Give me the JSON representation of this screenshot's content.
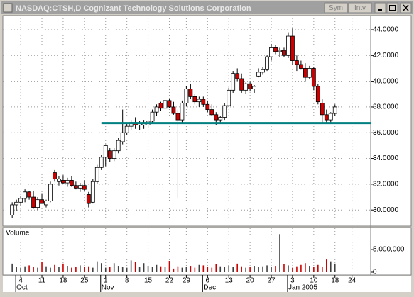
{
  "window": {
    "title": "NASDAQ:CTSH,D Cognizant Technology Solutions Corporation",
    "buttons": [
      "Sym",
      "Intv"
    ]
  },
  "chart_data": {
    "type": "candlestick",
    "x": [
      -2,
      -1,
      0,
      1,
      2,
      3,
      4,
      5,
      6,
      7,
      8,
      9,
      10,
      11,
      12,
      13,
      14,
      15,
      16,
      17,
      18,
      19,
      20,
      21,
      22,
      23,
      24,
      25,
      26,
      27,
      28,
      29,
      30,
      31,
      32,
      33,
      34,
      35,
      36,
      37,
      38,
      39,
      40,
      41,
      42,
      43,
      44,
      45,
      46,
      47,
      48,
      49,
      50,
      51,
      52,
      53,
      54,
      55,
      56,
      57,
      58,
      59,
      60,
      61,
      62,
      63,
      64,
      65,
      66,
      67,
      68,
      69,
      70,
      71,
      72,
      73,
      74
    ],
    "open": [
      29.6,
      30.4,
      30.6,
      30.9,
      31.4,
      31.0,
      30.2,
      30.8,
      30.4,
      30.7,
      32.9,
      32.2,
      32.3,
      32.1,
      32.3,
      31.9,
      31.7,
      31.9,
      31.2,
      30.6,
      32.2,
      33.3,
      34.1,
      34.6,
      34.0,
      34.6,
      35.3,
      36.0,
      36.5,
      36.8,
      36.6,
      36.6,
      36.6,
      36.9,
      37.6,
      38.3,
      37.9,
      38.5,
      38.0,
      37.5,
      37.0,
      38.3,
      39.4,
      38.8,
      38.4,
      38.6,
      38.2,
      37.8,
      37.4,
      37.0,
      37.2,
      38.1,
      39.3,
      40.6,
      40.2,
      39.3,
      39.8,
      39.4,
      40.4,
      40.7,
      40.9,
      41.9,
      42.6,
      42.3,
      42.4,
      42.0,
      43.5,
      41.6,
      41.3,
      41.0,
      40.3,
      41.0,
      39.6,
      38.3,
      37.4,
      37.0,
      37.5
    ],
    "high": [
      30.6,
      30.8,
      31.1,
      31.6,
      31.5,
      31.5,
      31.0,
      31.3,
      30.8,
      32.2,
      33.1,
      32.6,
      32.7,
      32.5,
      32.6,
      32.2,
      32.1,
      32.3,
      31.4,
      32.4,
      33.5,
      34.3,
      35.1,
      34.8,
      34.8,
      35.6,
      37.8,
      36.8,
      37.0,
      37.2,
      36.9,
      37.0,
      37.0,
      37.8,
      38.2,
      38.4,
      38.8,
      38.6,
      38.4,
      37.8,
      38.5,
      39.6,
      39.8,
      39.0,
      38.8,
      38.8,
      38.5,
      38.2,
      37.6,
      37.3,
      38.3,
      39.5,
      40.8,
      41.0,
      40.6,
      39.9,
      40.0,
      39.7,
      41.0,
      41.1,
      42.0,
      42.9,
      42.8,
      42.6,
      42.6,
      43.8,
      44.1,
      42.0,
      41.6,
      41.4,
      41.2,
      41.1,
      39.8,
      38.6,
      37.8,
      37.6,
      38.2
    ],
    "low": [
      29.4,
      29.9,
      30.3,
      30.6,
      30.8,
      30.1,
      30.0,
      30.5,
      30.2,
      30.6,
      32.2,
      31.9,
      32.0,
      31.8,
      31.8,
      31.6,
      31.4,
      31.5,
      30.2,
      30.5,
      32.0,
      33.1,
      33.4,
      33.7,
      33.8,
      34.4,
      35.1,
      35.8,
      36.2,
      36.3,
      36.2,
      36.3,
      36.4,
      36.8,
      37.3,
      37.7,
      37.8,
      37.9,
      37.4,
      30.9,
      36.8,
      38.1,
      38.6,
      38.2,
      38.0,
      38.0,
      37.6,
      37.3,
      36.6,
      36.7,
      37.0,
      38.0,
      39.1,
      40.0,
      39.1,
      39.0,
      39.2,
      39.1,
      40.3,
      40.5,
      40.8,
      41.6,
      42.1,
      41.9,
      41.9,
      41.8,
      41.3,
      40.8,
      40.9,
      40.0,
      40.2,
      39.3,
      38.2,
      36.7,
      36.8,
      36.8,
      37.3
    ],
    "close": [
      30.4,
      30.6,
      30.9,
      31.4,
      31.0,
      30.2,
      30.8,
      30.5,
      30.7,
      32.0,
      32.4,
      32.4,
      32.1,
      32.3,
      31.9,
      31.7,
      31.9,
      31.6,
      30.5,
      32.2,
      33.3,
      34.1,
      35.0,
      34.0,
      34.6,
      35.4,
      36.0,
      36.5,
      36.8,
      36.6,
      36.7,
      36.8,
      36.9,
      37.6,
      38.0,
      37.9,
      38.5,
      38.0,
      37.5,
      37.0,
      38.3,
      39.4,
      38.8,
      38.4,
      38.6,
      38.2,
      37.8,
      37.4,
      37.0,
      37.2,
      38.1,
      39.3,
      40.6,
      40.2,
      39.3,
      39.8,
      39.4,
      39.6,
      40.7,
      40.9,
      41.9,
      42.6,
      42.3,
      42.4,
      42.0,
      43.5,
      41.6,
      41.3,
      41.0,
      40.3,
      41.0,
      39.6,
      38.4,
      37.4,
      37.0,
      37.5,
      38.0
    ],
    "xlim": [
      -4.2,
      82.4
    ],
    "ylim": [
      28.8,
      45.1
    ],
    "yticks": [
      {
        "value": 30,
        "label": "30.0000"
      },
      {
        "value": 32,
        "label": "32.0000"
      },
      {
        "value": 34,
        "label": "34.0000"
      },
      {
        "value": 36,
        "label": "36.0000"
      },
      {
        "value": 38,
        "label": "38.0000"
      },
      {
        "value": 40,
        "label": "40.0000"
      },
      {
        "value": 42,
        "label": "42.0000"
      },
      {
        "value": 44,
        "label": "44.0000"
      }
    ],
    "xticks": [
      {
        "value": 0,
        "label": "4"
      },
      {
        "value": 5,
        "label": "11"
      },
      {
        "value": 10,
        "label": "18"
      },
      {
        "value": 15,
        "label": "25"
      },
      {
        "value": 20,
        "label": "1"
      },
      {
        "value": 25,
        "label": "8"
      },
      {
        "value": 30,
        "label": "15"
      },
      {
        "value": 35,
        "label": "22"
      },
      {
        "value": 39,
        "label": "29"
      },
      {
        "value": 44,
        "label": "6"
      },
      {
        "value": 49,
        "label": "13"
      },
      {
        "value": 54,
        "label": "20"
      },
      {
        "value": 59,
        "label": "27"
      },
      {
        "value": 64,
        "label": "3"
      },
      {
        "value": 69,
        "label": "10"
      },
      {
        "value": 74,
        "label": "18"
      },
      {
        "value": 78,
        "label": "24"
      }
    ],
    "month_labels": [
      {
        "value": 0,
        "label": "Oct"
      },
      {
        "value": 20,
        "label": "Nov"
      },
      {
        "value": 44,
        "label": "Dec"
      },
      {
        "value": 64,
        "label": "Jan 2005"
      }
    ],
    "hline": {
      "value": 36.75,
      "x_start": 19,
      "color": "#008080"
    },
    "up_color": "#ffffff",
    "down_color": "#cc0000",
    "grid": true,
    "volume": {
      "label": "Volume",
      "values": [
        1900000,
        1200000,
        1000000,
        1300000,
        1500000,
        1200000,
        1000000,
        2200000,
        1300000,
        1000000,
        1600000,
        1100000,
        1900000,
        1400000,
        1000000,
        1100000,
        1500000,
        1200000,
        1300000,
        1000000,
        2400000,
        2000000,
        1000000,
        1200000,
        2000000,
        1400000,
        1100000,
        1000000,
        2600000,
        2200000,
        1200000,
        2000000,
        1400000,
        1200000,
        1600000,
        1300000,
        1100000,
        2500000,
        800000,
        1300000,
        1000000,
        1100000,
        1400000,
        1000000,
        1600000,
        1500000,
        1200000,
        1000000,
        1800000,
        1300000,
        1100000,
        1500000,
        1200000,
        1900000,
        1300000,
        1000000,
        1100000,
        1400000,
        1200000,
        1300000,
        1500000,
        1200000,
        1400000,
        8400000,
        1800000,
        1500000,
        1000000,
        1300000,
        1600000,
        2000000,
        1400000,
        1200000,
        1600000,
        1100000,
        2800000,
        2400000,
        1900000
      ],
      "ylim": [
        0,
        9700000
      ],
      "yticks": [
        0,
        {
          "value": 5000000,
          "label": "5,000,000"
        }
      ]
    }
  }
}
